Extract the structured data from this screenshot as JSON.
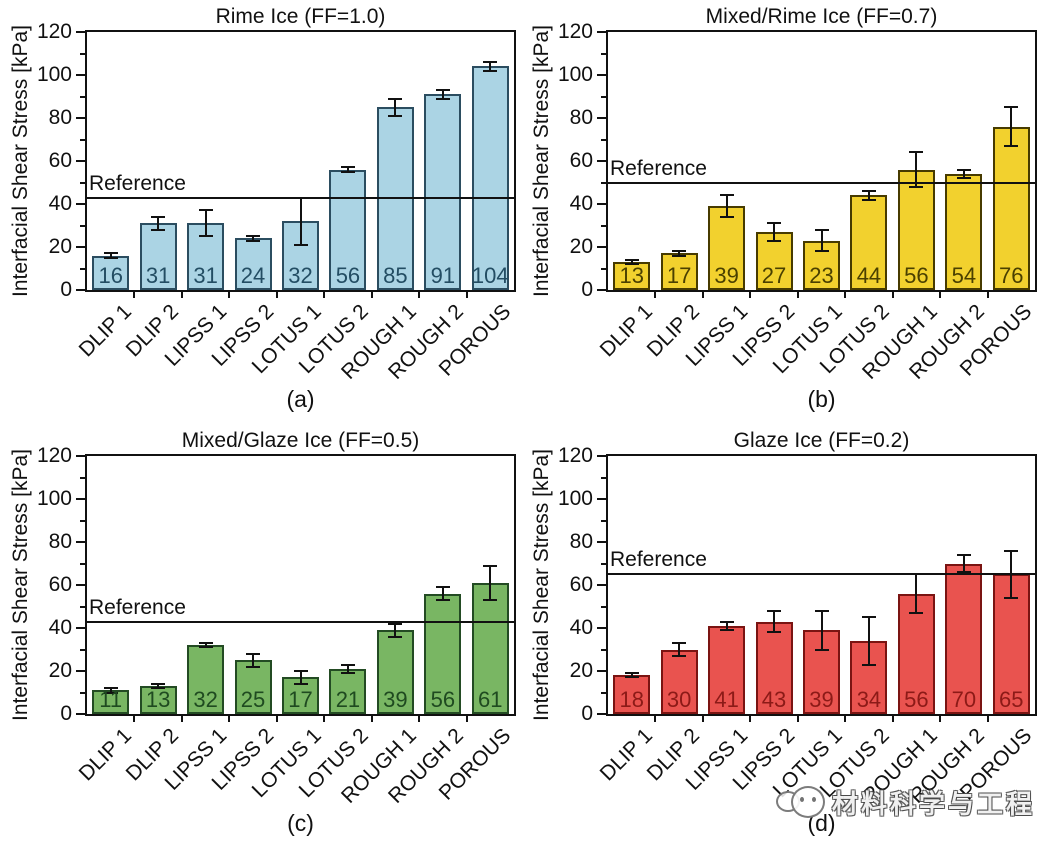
{
  "figure": {
    "ylabel": "Interfacial Shear Stress [kPa]",
    "reference_label": "Reference"
  },
  "watermark": {
    "text": "材料科学与工程",
    "logo": "panda-chat-icon"
  },
  "chart_data": [
    {
      "type": "bar",
      "panel_label": "(a)",
      "title": "Rime Ice (FF=1.0)",
      "xlabel": "",
      "ylabel": "Interfacial Shear Stress [kPa]",
      "ylim": [
        0,
        120
      ],
      "ytick_major_step": 20,
      "ytick_minor_step": 10,
      "grid": false,
      "legend": "none",
      "categories": [
        "DLIP 1",
        "DLIP 2",
        "LIPSS 1",
        "LIPSS 2",
        "LOTUS 1",
        "LOTUS 2",
        "ROUGH 1",
        "ROUGH 2",
        "POROUS"
      ],
      "values": [
        16,
        31,
        31,
        24,
        32,
        56,
        85,
        91,
        104
      ],
      "errors": [
        1,
        3,
        6,
        1,
        11,
        1,
        4,
        2,
        2
      ],
      "reference": {
        "label": "Reference",
        "value": 43
      },
      "colors": {
        "fill": "#abd4e4",
        "edge": "#2b4d60",
        "value_label": "#234d63",
        "axis": "#111111"
      }
    },
    {
      "type": "bar",
      "panel_label": "(b)",
      "title": "Mixed/Rime Ice (FF=0.7)",
      "xlabel": "",
      "ylabel": "Interfacial Shear Stress [kPa]",
      "ylim": [
        0,
        120
      ],
      "ytick_major_step": 20,
      "ytick_minor_step": 10,
      "grid": false,
      "legend": "none",
      "categories": [
        "DLIP 1",
        "DLIP 2",
        "LIPSS 1",
        "LIPSS 2",
        "LOTUS 1",
        "LOTUS 2",
        "ROUGH 1",
        "ROUGH 2",
        "POROUS"
      ],
      "values": [
        13,
        17,
        39,
        27,
        23,
        44,
        56,
        54,
        76
      ],
      "errors": [
        1,
        1,
        5,
        4,
        5,
        2,
        8,
        2,
        9
      ],
      "reference": {
        "label": "Reference",
        "value": 50
      },
      "colors": {
        "fill": "#f2d12e",
        "edge": "#473b00",
        "value_label": "#4a4000",
        "axis": "#111111"
      }
    },
    {
      "type": "bar",
      "panel_label": "(c)",
      "title": "Mixed/Glaze Ice (FF=0.5)",
      "xlabel": "",
      "ylabel": "Interfacial Shear Stress [kPa]",
      "ylim": [
        0,
        120
      ],
      "ytick_major_step": 20,
      "ytick_minor_step": 10,
      "grid": false,
      "legend": "none",
      "categories": [
        "DLIP 1",
        "DLIP 2",
        "LIPSS 1",
        "LIPSS 2",
        "LOTUS 1",
        "LOTUS 2",
        "ROUGH 1",
        "ROUGH 2",
        "POROUS"
      ],
      "values": [
        11,
        13,
        32,
        25,
        17,
        21,
        39,
        56,
        61
      ],
      "errors": [
        1,
        1,
        1,
        3,
        3,
        2,
        3,
        3,
        8
      ],
      "reference": {
        "label": "Reference",
        "value": 43
      },
      "colors": {
        "fill": "#79b663",
        "edge": "#234b23",
        "value_label": "#1f4a20",
        "axis": "#111111"
      }
    },
    {
      "type": "bar",
      "panel_label": "(d)",
      "title": "Glaze Ice (FF=0.2)",
      "xlabel": "",
      "ylabel": "Interfacial Shear Stress [kPa]",
      "ylim": [
        0,
        120
      ],
      "ytick_major_step": 20,
      "ytick_minor_step": 10,
      "grid": false,
      "legend": "none",
      "categories": [
        "DLIP 1",
        "DLIP 2",
        "LIPSS 1",
        "LIPSS 2",
        "LOTUS 1",
        "LOTUS 2",
        "ROUGH 1",
        "ROUGH 2",
        "POROUS"
      ],
      "values": [
        18,
        30,
        41,
        43,
        39,
        34,
        56,
        70,
        65
      ],
      "errors": [
        1,
        3,
        2,
        5,
        9,
        11,
        9,
        4,
        11
      ],
      "reference": {
        "label": "Reference",
        "value": 65
      },
      "colors": {
        "fill": "#e9534f",
        "edge": "#7a1412",
        "value_label": "#8c1a17",
        "axis": "#111111"
      }
    }
  ]
}
